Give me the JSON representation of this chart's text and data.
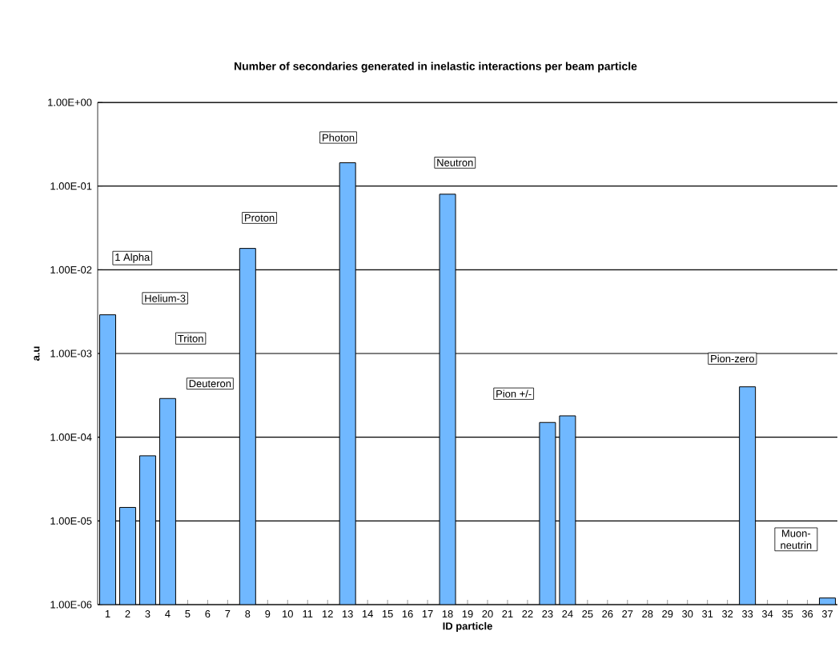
{
  "chart_data": {
    "type": "bar",
    "title": "Number of secondaries generated in inelastic interactions per beam particle",
    "xlabel": "ID particle",
    "ylabel": "a.u",
    "categories": [
      "1",
      "2",
      "3",
      "4",
      "5",
      "6",
      "7",
      "8",
      "9",
      "10",
      "11",
      "12",
      "13",
      "14",
      "15",
      "16",
      "17",
      "18",
      "19",
      "20",
      "21",
      "22",
      "23",
      "24",
      "25",
      "26",
      "27",
      "28",
      "29",
      "30",
      "31",
      "32",
      "33",
      "34",
      "35",
      "36",
      "37"
    ],
    "values": [
      0.0029,
      1.45e-05,
      6e-05,
      0.00029,
      null,
      null,
      null,
      0.018,
      null,
      null,
      null,
      null,
      0.19,
      null,
      null,
      null,
      null,
      0.08,
      null,
      null,
      null,
      null,
      0.00015,
      0.00018,
      null,
      null,
      null,
      null,
      null,
      null,
      null,
      null,
      0.0004,
      null,
      null,
      null,
      1.2e-06
    ],
    "color": "#70b8ff",
    "log": "y",
    "ylim": [
      1e-06,
      1
    ],
    "yticks": [
      {
        "value": 1e-06,
        "label": "1.00E-06"
      },
      {
        "value": 1e-05,
        "label": "1.00E-05"
      },
      {
        "value": 0.0001,
        "label": "1.00E-04"
      },
      {
        "value": 0.001,
        "label": "1.00E-03"
      },
      {
        "value": 0.01,
        "label": "1.00E-02"
      },
      {
        "value": 0.1,
        "label": "1.00E-01"
      },
      {
        "value": 1,
        "label": "1.00E+00"
      }
    ],
    "grid": "y",
    "annotations": [
      "1 Alpha",
      "Helium-3",
      "Triton",
      "Deuteron",
      "Proton",
      "Photon",
      "Neutron",
      "Pion +/-",
      "Pion-zero",
      "Muon-neutrin"
    ]
  }
}
